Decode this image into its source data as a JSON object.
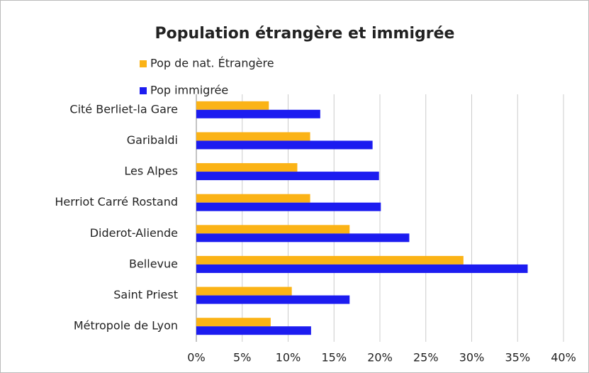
{
  "chart_data": {
    "type": "hbar",
    "title": "Population  étrangère et immigrée",
    "categories": [
      "Cité Berliet-la Gare",
      "Garibaldi",
      "Les Alpes",
      "Herriot Carré Rostand",
      "Diderot-Aliende",
      "Bellevue",
      "Saint Priest",
      "Métropole de Lyon"
    ],
    "series": [
      {
        "name": "Pop de nat. Étrangère",
        "color": "#fbb316",
        "values": [
          7.9,
          12.4,
          11.0,
          12.4,
          16.7,
          29.1,
          10.4,
          8.1
        ]
      },
      {
        "name": "Pop immigrée",
        "color": "#1c1cf0",
        "values": [
          13.5,
          19.2,
          19.9,
          20.1,
          23.2,
          36.1,
          16.7,
          12.5
        ]
      }
    ],
    "xlim": [
      0,
      40
    ],
    "xticks": [
      {
        "value": 0,
        "label": "0%"
      },
      {
        "value": 5,
        "label": "5%"
      },
      {
        "value": 10,
        "label": "10%"
      },
      {
        "value": 15,
        "label": "15%"
      },
      {
        "value": 20,
        "label": "20%"
      },
      {
        "value": 25,
        "label": "25%"
      },
      {
        "value": 30,
        "label": "30%"
      },
      {
        "value": 35,
        "label": "35%"
      },
      {
        "value": 40,
        "label": "40%"
      }
    ],
    "grid": true,
    "legend": "top-left"
  }
}
